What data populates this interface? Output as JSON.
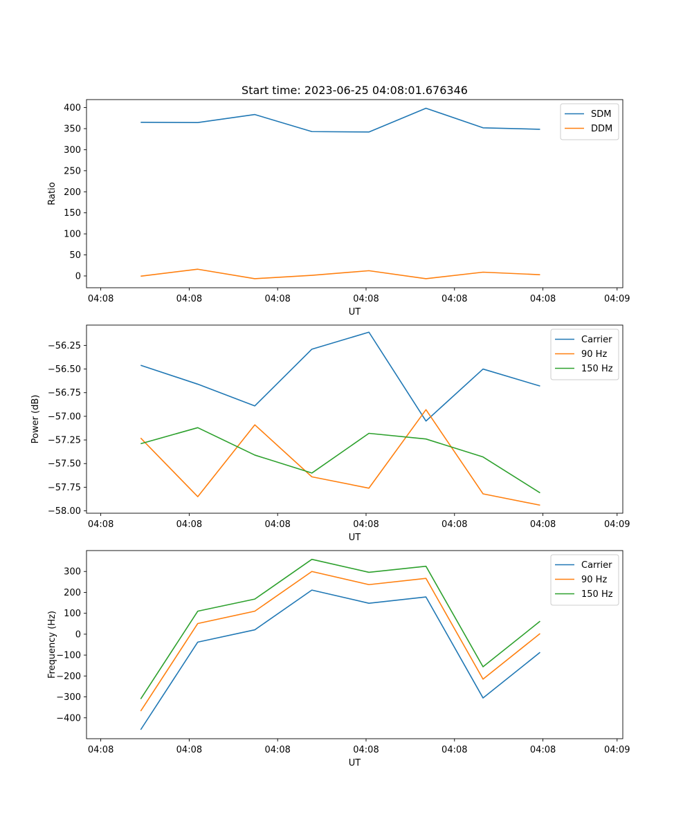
{
  "title": "Start time: 2023-06-25 04:08:01.676346",
  "chart_data": [
    {
      "type": "line",
      "xlabel": "UT",
      "ylabel": "Ratio",
      "x_tick_labels": [
        "04:08",
        "04:08",
        "04:08",
        "04:08",
        "04:08",
        "04:08",
        "04:09"
      ],
      "x": [
        1,
        2,
        3,
        4,
        5,
        6,
        7,
        8
      ],
      "xlim": [
        0.05,
        9.45
      ],
      "ylim": [
        -28,
        419
      ],
      "y_ticks": [
        0,
        50,
        100,
        150,
        200,
        250,
        300,
        350,
        400
      ],
      "legend_position": "top-right",
      "series": [
        {
          "name": "SDM",
          "color": "#1f77b4",
          "values": [
            365,
            364.5,
            383.5,
            343,
            342,
            398.5,
            352,
            348.5
          ]
        },
        {
          "name": "DDM",
          "color": "#ff7f0e",
          "values": [
            -0.5,
            16,
            -6.5,
            1.5,
            12.5,
            -6.5,
            9,
            3
          ]
        }
      ]
    },
    {
      "type": "line",
      "xlabel": "UT",
      "ylabel": "Power (dB)",
      "x_tick_labels": [
        "04:08",
        "04:08",
        "04:08",
        "04:08",
        "04:08",
        "04:08",
        "04:09"
      ],
      "x": [
        1,
        2,
        3,
        4,
        5,
        6,
        7,
        8
      ],
      "xlim": [
        0.05,
        9.45
      ],
      "ylim": [
        -58.025,
        -56.035
      ],
      "y_ticks": [
        -58.0,
        -57.75,
        -57.5,
        -57.25,
        -57.0,
        -56.75,
        -56.5,
        -56.25
      ],
      "y_tick_labels": [
        "−58.00",
        "−57.75",
        "−57.50",
        "−57.25",
        "−57.00",
        "−56.75",
        "−56.50",
        "−56.25"
      ],
      "legend_position": "top-right",
      "series": [
        {
          "name": "Carrier",
          "color": "#1f77b4",
          "values": [
            -56.46,
            -56.66,
            -56.89,
            -56.29,
            -56.11,
            -57.05,
            -56.5,
            -56.68
          ]
        },
        {
          "name": "90 Hz",
          "color": "#ff7f0e",
          "values": [
            -57.23,
            -57.85,
            -57.09,
            -57.64,
            -57.76,
            -56.93,
            -57.82,
            -57.94
          ]
        },
        {
          "name": "150 Hz",
          "color": "#2ca02c",
          "values": [
            -57.29,
            -57.12,
            -57.41,
            -57.6,
            -57.18,
            -57.24,
            -57.43,
            -57.81
          ]
        }
      ]
    },
    {
      "type": "line",
      "xlabel": "UT",
      "ylabel": "Frequency (Hz)",
      "x_tick_labels": [
        "04:08",
        "04:08",
        "04:08",
        "04:08",
        "04:08",
        "04:08",
        "04:09"
      ],
      "x": [
        1,
        2,
        3,
        4,
        5,
        6,
        7,
        8
      ],
      "xlim": [
        0.05,
        9.45
      ],
      "ylim": [
        -500,
        400
      ],
      "y_ticks": [
        -400,
        -300,
        -200,
        -100,
        0,
        100,
        200,
        300
      ],
      "y_tick_labels": [
        "−400",
        "−300",
        "−200",
        "−100",
        "0",
        "100",
        "200",
        "300"
      ],
      "legend_position": "top-right",
      "series": [
        {
          "name": "Carrier",
          "color": "#1f77b4",
          "values": [
            -457,
            -38,
            21,
            211,
            148,
            178,
            -305,
            -87
          ]
        },
        {
          "name": "90 Hz",
          "color": "#ff7f0e",
          "values": [
            -368,
            51,
            110,
            300,
            237,
            267,
            -215,
            3
          ]
        },
        {
          "name": "150 Hz",
          "color": "#2ca02c",
          "values": [
            -310,
            110,
            168,
            358,
            296,
            325,
            -156,
            62
          ]
        }
      ]
    }
  ]
}
